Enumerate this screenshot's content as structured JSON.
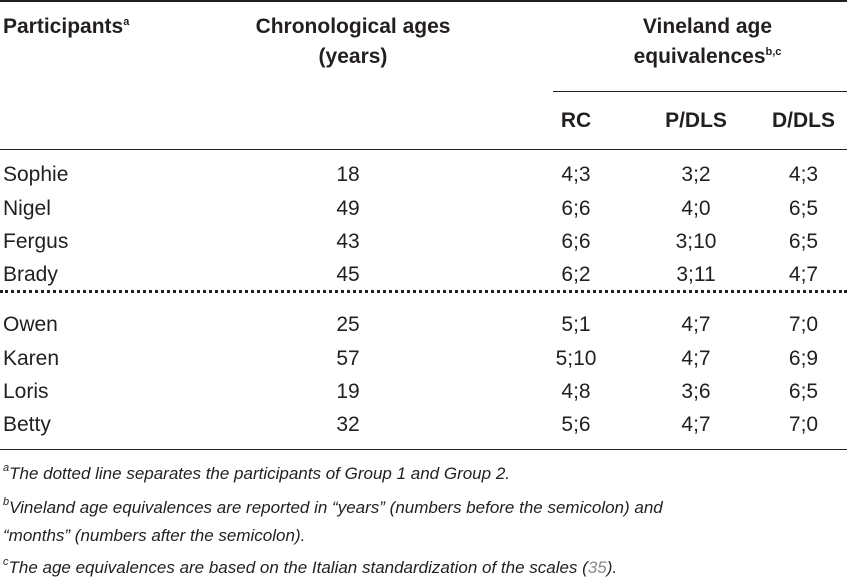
{
  "headers": {
    "participants": "Participants",
    "participants_sup": "a",
    "chron_line1": "Chronological ages",
    "chron_line2": "(years)",
    "vineland_line1": "Vineland age",
    "vineland_line2": "equivalences",
    "vineland_sup": "b,c",
    "rc": "RC",
    "pdls": "P/DLS",
    "ddls": "D/DLS"
  },
  "rows": [
    {
      "name": "Sophie",
      "age": "18",
      "rc": "4;3",
      "pdls": "3;2",
      "ddls": "4;3"
    },
    {
      "name": "Nigel",
      "age": "49",
      "rc": "6;6",
      "pdls": "4;0",
      "ddls": "6;5"
    },
    {
      "name": "Fergus",
      "age": "43",
      "rc": "6;6",
      "pdls": "3;10",
      "ddls": "6;5"
    },
    {
      "name": "Brady",
      "age": "45",
      "rc": "6;2",
      "pdls": "3;11",
      "ddls": "4;7"
    },
    {
      "name": "Owen",
      "age": "25",
      "rc": "5;1",
      "pdls": "4;7",
      "ddls": "7;0"
    },
    {
      "name": "Karen",
      "age": "57",
      "rc": "5;10",
      "pdls": "4;7",
      "ddls": "6;9"
    },
    {
      "name": "Loris",
      "age": "19",
      "rc": "4;8",
      "pdls": "3;6",
      "ddls": "6;5"
    },
    {
      "name": "Betty",
      "age": "32",
      "rc": "5;6",
      "pdls": "4;7",
      "ddls": "7;0"
    }
  ],
  "notes": {
    "a_sup": "a",
    "a_text": "The dotted line separates the participants of Group 1 and Group 2.",
    "b_sup": "b",
    "b_text_line1": "Vineland age equivalences are reported in “years” (numbers before the semicolon) and",
    "b_text_line2": "“months” (numbers after the semicolon).",
    "c_sup": "c",
    "c_text": "The age equivalences are based on the Italian standardization of the scales (",
    "c_ref": "35",
    "c_end": ")."
  }
}
